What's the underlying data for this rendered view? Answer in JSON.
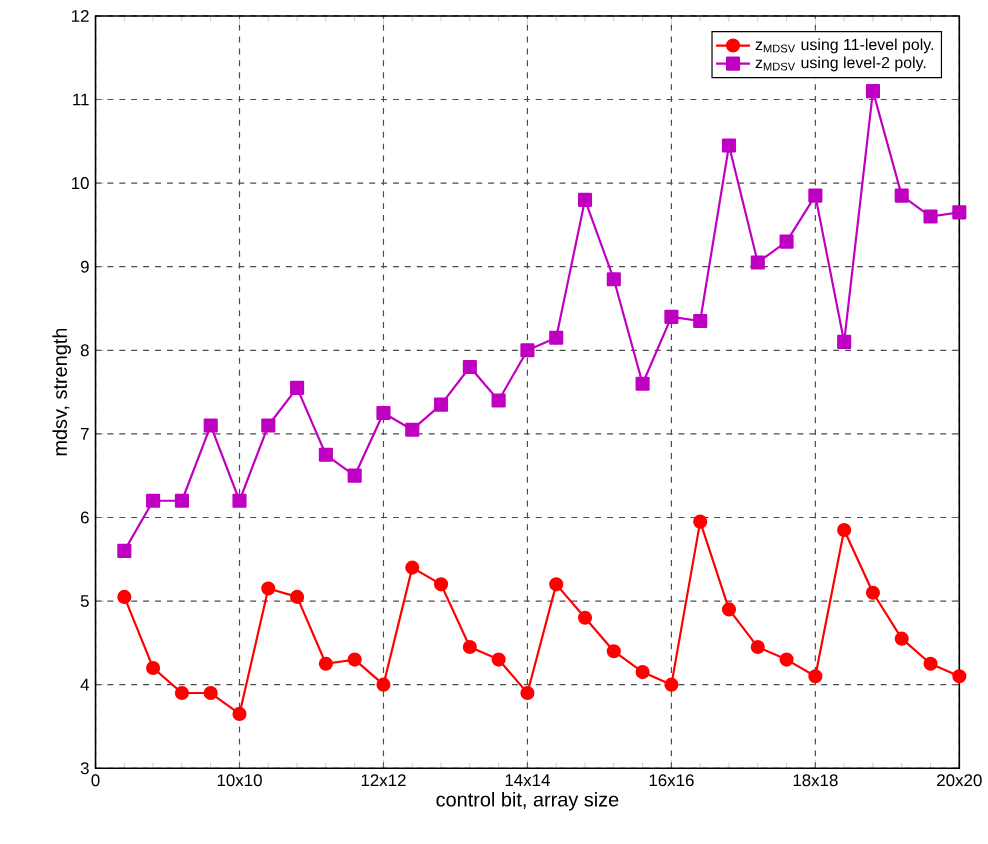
{
  "chart_data": {
    "type": "line",
    "xlabel": "control bit, array size",
    "ylabel": "mdsv, strength",
    "categories": [
      "0",
      null,
      null,
      null,
      null,
      "10x10",
      null,
      null,
      null,
      null,
      "12x12",
      null,
      null,
      null,
      null,
      "14x14",
      null,
      null,
      null,
      null,
      "16x16",
      null,
      null,
      null,
      null,
      "18x18",
      null,
      null,
      null,
      null,
      "20x20"
    ],
    "series": [
      {
        "name": "z$_{MDSV}$ using 11-level poly.",
        "color": "#ff0000",
        "marker": "circle",
        "values": [
          null,
          5.05,
          4.2,
          3.9,
          3.9,
          3.65,
          5.15,
          5.05,
          4.25,
          4.3,
          4.0,
          5.4,
          5.2,
          4.45,
          4.3,
          3.9,
          5.2,
          4.8,
          4.4,
          4.15,
          4.0,
          5.95,
          4.9,
          4.45,
          4.3,
          4.1,
          5.85,
          5.1,
          4.55,
          4.25,
          4.1
        ]
      },
      {
        "name": "z$_{MDSV}$ using level-2 poly.",
        "color": "#c000c0",
        "marker": "square",
        "values": [
          null,
          5.6,
          6.2,
          6.2,
          7.1,
          6.2,
          7.1,
          7.55,
          6.75,
          6.5,
          7.25,
          7.05,
          7.35,
          7.8,
          7.4,
          8.0,
          8.15,
          9.8,
          8.85,
          7.6,
          8.4,
          8.35,
          10.45,
          9.05,
          9.3,
          9.85,
          8.1,
          11.1,
          9.85,
          9.6,
          9.65
        ]
      }
    ],
    "ylim": [
      3,
      12
    ],
    "yticks": [
      3,
      4,
      5,
      6,
      7,
      8,
      9,
      10,
      11,
      12
    ],
    "grid": true,
    "legend": "top right",
    "line_style": "solid"
  }
}
